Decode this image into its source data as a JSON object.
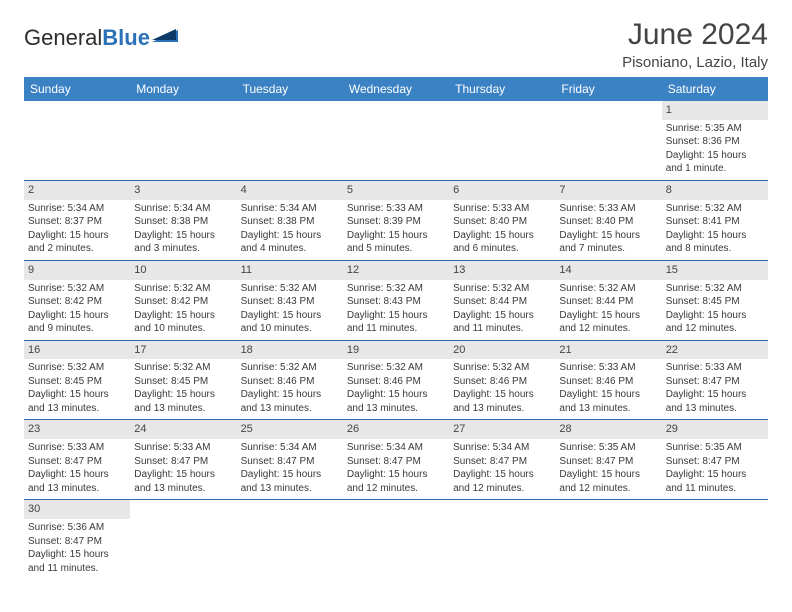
{
  "brand": {
    "part1": "General",
    "part2": "Blue"
  },
  "title": "June 2024",
  "location": "Pisoniano, Lazio, Italy",
  "colors": {
    "header_bg": "#3b82c4",
    "header_text": "#ffffff",
    "daynum_bg": "#e7e7e7",
    "rule": "#2f6aa8",
    "brand_blue": "#2b71b8"
  },
  "day_headers": [
    "Sunday",
    "Monday",
    "Tuesday",
    "Wednesday",
    "Thursday",
    "Friday",
    "Saturday"
  ],
  "weeks": [
    [
      {
        "n": "",
        "sr": "",
        "ss": "",
        "dl1": "",
        "dl2": ""
      },
      {
        "n": "",
        "sr": "",
        "ss": "",
        "dl1": "",
        "dl2": ""
      },
      {
        "n": "",
        "sr": "",
        "ss": "",
        "dl1": "",
        "dl2": ""
      },
      {
        "n": "",
        "sr": "",
        "ss": "",
        "dl1": "",
        "dl2": ""
      },
      {
        "n": "",
        "sr": "",
        "ss": "",
        "dl1": "",
        "dl2": ""
      },
      {
        "n": "",
        "sr": "",
        "ss": "",
        "dl1": "",
        "dl2": ""
      },
      {
        "n": "1",
        "sr": "Sunrise: 5:35 AM",
        "ss": "Sunset: 8:36 PM",
        "dl1": "Daylight: 15 hours",
        "dl2": "and 1 minute."
      }
    ],
    [
      {
        "n": "2",
        "sr": "Sunrise: 5:34 AM",
        "ss": "Sunset: 8:37 PM",
        "dl1": "Daylight: 15 hours",
        "dl2": "and 2 minutes."
      },
      {
        "n": "3",
        "sr": "Sunrise: 5:34 AM",
        "ss": "Sunset: 8:38 PM",
        "dl1": "Daylight: 15 hours",
        "dl2": "and 3 minutes."
      },
      {
        "n": "4",
        "sr": "Sunrise: 5:34 AM",
        "ss": "Sunset: 8:38 PM",
        "dl1": "Daylight: 15 hours",
        "dl2": "and 4 minutes."
      },
      {
        "n": "5",
        "sr": "Sunrise: 5:33 AM",
        "ss": "Sunset: 8:39 PM",
        "dl1": "Daylight: 15 hours",
        "dl2": "and 5 minutes."
      },
      {
        "n": "6",
        "sr": "Sunrise: 5:33 AM",
        "ss": "Sunset: 8:40 PM",
        "dl1": "Daylight: 15 hours",
        "dl2": "and 6 minutes."
      },
      {
        "n": "7",
        "sr": "Sunrise: 5:33 AM",
        "ss": "Sunset: 8:40 PM",
        "dl1": "Daylight: 15 hours",
        "dl2": "and 7 minutes."
      },
      {
        "n": "8",
        "sr": "Sunrise: 5:32 AM",
        "ss": "Sunset: 8:41 PM",
        "dl1": "Daylight: 15 hours",
        "dl2": "and 8 minutes."
      }
    ],
    [
      {
        "n": "9",
        "sr": "Sunrise: 5:32 AM",
        "ss": "Sunset: 8:42 PM",
        "dl1": "Daylight: 15 hours",
        "dl2": "and 9 minutes."
      },
      {
        "n": "10",
        "sr": "Sunrise: 5:32 AM",
        "ss": "Sunset: 8:42 PM",
        "dl1": "Daylight: 15 hours",
        "dl2": "and 10 minutes."
      },
      {
        "n": "11",
        "sr": "Sunrise: 5:32 AM",
        "ss": "Sunset: 8:43 PM",
        "dl1": "Daylight: 15 hours",
        "dl2": "and 10 minutes."
      },
      {
        "n": "12",
        "sr": "Sunrise: 5:32 AM",
        "ss": "Sunset: 8:43 PM",
        "dl1": "Daylight: 15 hours",
        "dl2": "and 11 minutes."
      },
      {
        "n": "13",
        "sr": "Sunrise: 5:32 AM",
        "ss": "Sunset: 8:44 PM",
        "dl1": "Daylight: 15 hours",
        "dl2": "and 11 minutes."
      },
      {
        "n": "14",
        "sr": "Sunrise: 5:32 AM",
        "ss": "Sunset: 8:44 PM",
        "dl1": "Daylight: 15 hours",
        "dl2": "and 12 minutes."
      },
      {
        "n": "15",
        "sr": "Sunrise: 5:32 AM",
        "ss": "Sunset: 8:45 PM",
        "dl1": "Daylight: 15 hours",
        "dl2": "and 12 minutes."
      }
    ],
    [
      {
        "n": "16",
        "sr": "Sunrise: 5:32 AM",
        "ss": "Sunset: 8:45 PM",
        "dl1": "Daylight: 15 hours",
        "dl2": "and 13 minutes."
      },
      {
        "n": "17",
        "sr": "Sunrise: 5:32 AM",
        "ss": "Sunset: 8:45 PM",
        "dl1": "Daylight: 15 hours",
        "dl2": "and 13 minutes."
      },
      {
        "n": "18",
        "sr": "Sunrise: 5:32 AM",
        "ss": "Sunset: 8:46 PM",
        "dl1": "Daylight: 15 hours",
        "dl2": "and 13 minutes."
      },
      {
        "n": "19",
        "sr": "Sunrise: 5:32 AM",
        "ss": "Sunset: 8:46 PM",
        "dl1": "Daylight: 15 hours",
        "dl2": "and 13 minutes."
      },
      {
        "n": "20",
        "sr": "Sunrise: 5:32 AM",
        "ss": "Sunset: 8:46 PM",
        "dl1": "Daylight: 15 hours",
        "dl2": "and 13 minutes."
      },
      {
        "n": "21",
        "sr": "Sunrise: 5:33 AM",
        "ss": "Sunset: 8:46 PM",
        "dl1": "Daylight: 15 hours",
        "dl2": "and 13 minutes."
      },
      {
        "n": "22",
        "sr": "Sunrise: 5:33 AM",
        "ss": "Sunset: 8:47 PM",
        "dl1": "Daylight: 15 hours",
        "dl2": "and 13 minutes."
      }
    ],
    [
      {
        "n": "23",
        "sr": "Sunrise: 5:33 AM",
        "ss": "Sunset: 8:47 PM",
        "dl1": "Daylight: 15 hours",
        "dl2": "and 13 minutes."
      },
      {
        "n": "24",
        "sr": "Sunrise: 5:33 AM",
        "ss": "Sunset: 8:47 PM",
        "dl1": "Daylight: 15 hours",
        "dl2": "and 13 minutes."
      },
      {
        "n": "25",
        "sr": "Sunrise: 5:34 AM",
        "ss": "Sunset: 8:47 PM",
        "dl1": "Daylight: 15 hours",
        "dl2": "and 13 minutes."
      },
      {
        "n": "26",
        "sr": "Sunrise: 5:34 AM",
        "ss": "Sunset: 8:47 PM",
        "dl1": "Daylight: 15 hours",
        "dl2": "and 12 minutes."
      },
      {
        "n": "27",
        "sr": "Sunrise: 5:34 AM",
        "ss": "Sunset: 8:47 PM",
        "dl1": "Daylight: 15 hours",
        "dl2": "and 12 minutes."
      },
      {
        "n": "28",
        "sr": "Sunrise: 5:35 AM",
        "ss": "Sunset: 8:47 PM",
        "dl1": "Daylight: 15 hours",
        "dl2": "and 12 minutes."
      },
      {
        "n": "29",
        "sr": "Sunrise: 5:35 AM",
        "ss": "Sunset: 8:47 PM",
        "dl1": "Daylight: 15 hours",
        "dl2": "and 11 minutes."
      }
    ],
    [
      {
        "n": "30",
        "sr": "Sunrise: 5:36 AM",
        "ss": "Sunset: 8:47 PM",
        "dl1": "Daylight: 15 hours",
        "dl2": "and 11 minutes."
      },
      {
        "n": "",
        "sr": "",
        "ss": "",
        "dl1": "",
        "dl2": ""
      },
      {
        "n": "",
        "sr": "",
        "ss": "",
        "dl1": "",
        "dl2": ""
      },
      {
        "n": "",
        "sr": "",
        "ss": "",
        "dl1": "",
        "dl2": ""
      },
      {
        "n": "",
        "sr": "",
        "ss": "",
        "dl1": "",
        "dl2": ""
      },
      {
        "n": "",
        "sr": "",
        "ss": "",
        "dl1": "",
        "dl2": ""
      },
      {
        "n": "",
        "sr": "",
        "ss": "",
        "dl1": "",
        "dl2": ""
      }
    ]
  ]
}
